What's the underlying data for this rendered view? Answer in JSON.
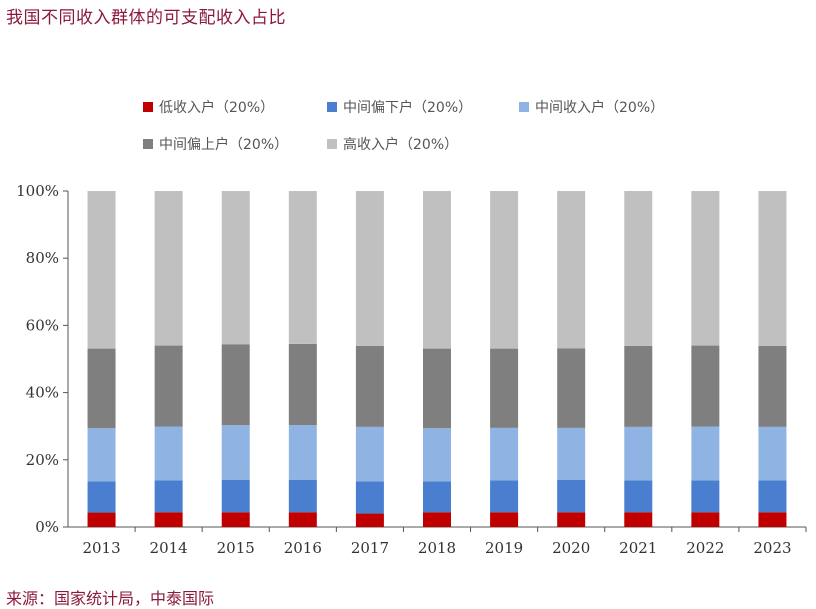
{
  "title": "我国不同收入群体的可支配收入占比",
  "source": "来源：国家统计局，中泰国际",
  "chart_data": {
    "type": "bar",
    "stacked": true,
    "categories": [
      "2013",
      "2014",
      "2015",
      "2016",
      "2017",
      "2018",
      "2019",
      "2020",
      "2021",
      "2022",
      "2023"
    ],
    "series": [
      {
        "name": "低收入户（20%）",
        "color": "#c00000",
        "values": [
          4.3,
          4.4,
          4.4,
          4.4,
          4.0,
          4.4,
          4.4,
          4.4,
          4.4,
          4.4,
          4.4
        ]
      },
      {
        "name": "中间偏下户（20%）",
        "color": "#4a7fcf",
        "values": [
          9.3,
          9.5,
          9.6,
          9.6,
          9.6,
          9.2,
          9.5,
          9.6,
          9.5,
          9.5,
          9.5
        ]
      },
      {
        "name": "中间收入户（20%）",
        "color": "#8fb4e3",
        "values": [
          15.8,
          16.0,
          16.3,
          16.3,
          16.2,
          15.8,
          15.6,
          15.5,
          15.9,
          16.0,
          15.9
        ]
      },
      {
        "name": "中间偏上户（20%）",
        "color": "#7f7f7f",
        "values": [
          23.7,
          24.1,
          24.1,
          24.2,
          24.1,
          23.7,
          23.6,
          23.7,
          24.1,
          24.1,
          24.1
        ]
      },
      {
        "name": "高收入户（20%）",
        "color": "#c0c0c0",
        "values": [
          46.9,
          46.0,
          45.6,
          45.5,
          46.1,
          46.9,
          46.9,
          46.8,
          46.1,
          46.0,
          46.1
        ]
      }
    ],
    "yticks": [
      "0%",
      "20%",
      "40%",
      "60%",
      "80%",
      "100%"
    ],
    "ylim": [
      0,
      100
    ],
    "legend_position": "top",
    "xlabel": "",
    "ylabel": ""
  }
}
